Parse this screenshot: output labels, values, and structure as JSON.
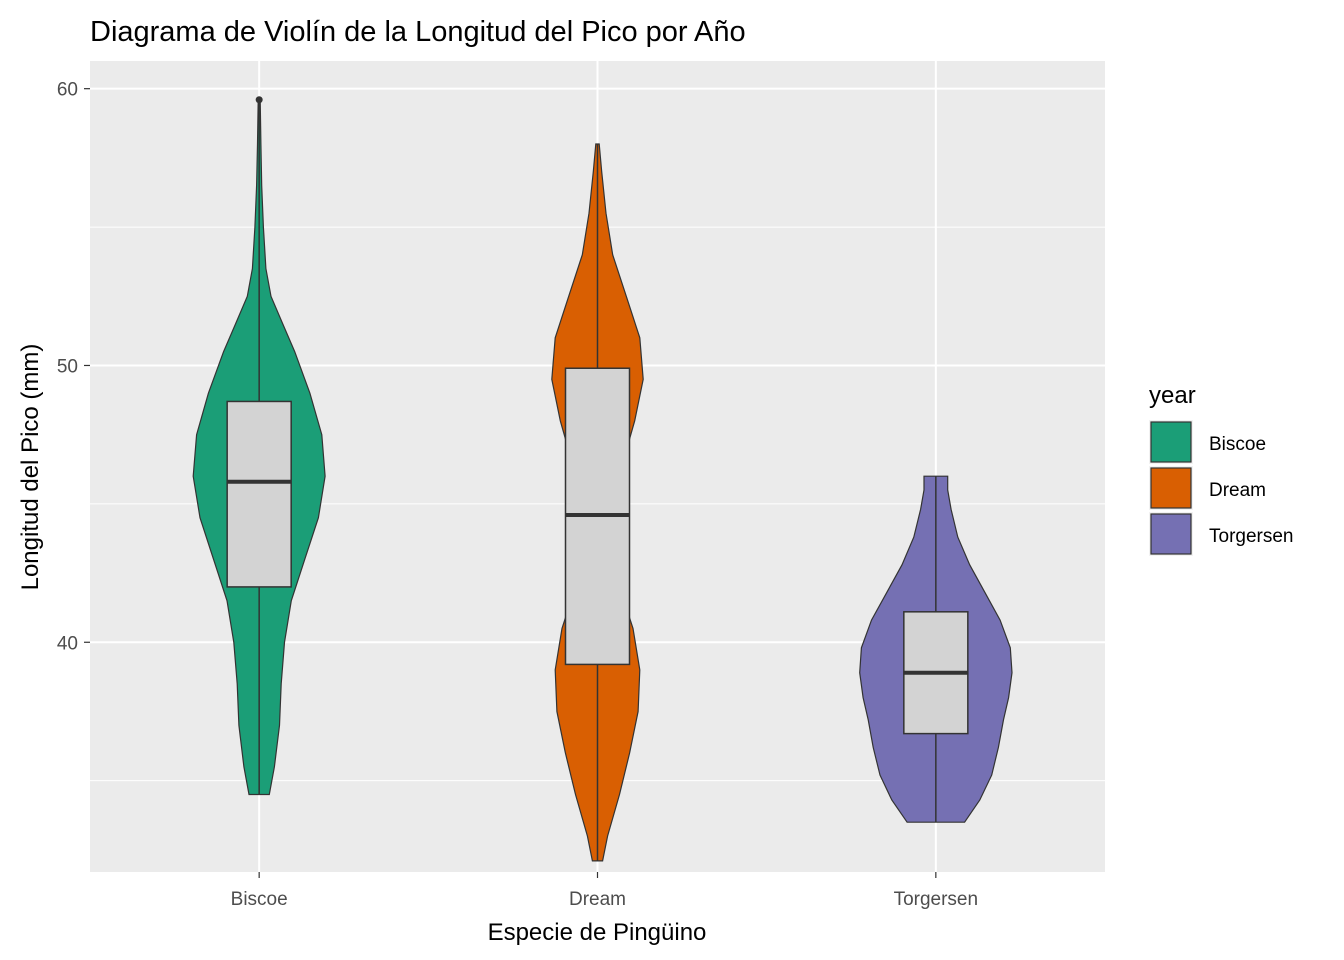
{
  "chart_data": {
    "type": "violin",
    "title": "Diagrama de Violín de la Longitud del Pico por Año",
    "xlabel": "Especie de Pingüino",
    "ylabel": "Longitud del Pico (mm)",
    "categories": [
      "Biscoe",
      "Dream",
      "Torgersen"
    ],
    "ylim": [
      31.7,
      61.0
    ],
    "yticks": [
      40,
      50,
      60
    ],
    "grid": true,
    "panel_background": "#ebebeb",
    "legend": {
      "title": "year",
      "placement": "right",
      "entries": [
        "Biscoe",
        "Dream",
        "Torgersen"
      ]
    },
    "series": [
      {
        "category": "Biscoe",
        "color": "#1b9e77",
        "box": {
          "lower_whisker": 34.5,
          "q1": 42.0,
          "median": 45.8,
          "q3": 48.7,
          "upper_whisker": 59.6
        },
        "outliers": [],
        "density_half_width": [
          [
            34.5,
            0.06
          ],
          [
            35.5,
            0.09
          ],
          [
            37.0,
            0.12
          ],
          [
            38.5,
            0.13
          ],
          [
            40.0,
            0.15
          ],
          [
            41.5,
            0.19
          ],
          [
            43.0,
            0.27
          ],
          [
            44.5,
            0.35
          ],
          [
            46.0,
            0.39
          ],
          [
            47.5,
            0.37
          ],
          [
            49.0,
            0.3
          ],
          [
            50.5,
            0.21
          ],
          [
            51.5,
            0.14
          ],
          [
            52.5,
            0.07
          ],
          [
            53.5,
            0.04
          ],
          [
            55.0,
            0.025
          ],
          [
            56.5,
            0.015
          ],
          [
            58.0,
            0.01
          ],
          [
            59.6,
            0.006
          ]
        ]
      },
      {
        "category": "Dream",
        "color": "#d95f02",
        "box": {
          "lower_whisker": 32.1,
          "q1": 39.2,
          "median": 44.6,
          "q3": 49.9,
          "upper_whisker": 58.0
        },
        "outliers": [],
        "density_half_width": [
          [
            32.1,
            0.03
          ],
          [
            33.0,
            0.06
          ],
          [
            34.5,
            0.13
          ],
          [
            36.0,
            0.19
          ],
          [
            37.5,
            0.24
          ],
          [
            39.0,
            0.25
          ],
          [
            40.5,
            0.21
          ],
          [
            42.0,
            0.13
          ],
          [
            43.5,
            0.09
          ],
          [
            45.0,
            0.11
          ],
          [
            46.5,
            0.15
          ],
          [
            48.0,
            0.22
          ],
          [
            49.5,
            0.27
          ],
          [
            51.0,
            0.25
          ],
          [
            52.5,
            0.17
          ],
          [
            54.0,
            0.09
          ],
          [
            55.5,
            0.05
          ],
          [
            57.0,
            0.025
          ],
          [
            58.0,
            0.01
          ]
        ]
      },
      {
        "category": "Torgersen",
        "color": "#7570b3",
        "box": {
          "lower_whisker": 33.5,
          "q1": 36.7,
          "median": 38.9,
          "q3": 41.1,
          "upper_whisker": 46.0
        },
        "outliers": [],
        "density_half_width": [
          [
            33.5,
            0.17
          ],
          [
            34.3,
            0.26
          ],
          [
            35.2,
            0.33
          ],
          [
            36.2,
            0.37
          ],
          [
            37.2,
            0.4
          ],
          [
            38.0,
            0.43
          ],
          [
            38.9,
            0.45
          ],
          [
            39.8,
            0.44
          ],
          [
            40.8,
            0.38
          ],
          [
            41.8,
            0.29
          ],
          [
            42.8,
            0.2
          ],
          [
            43.8,
            0.13
          ],
          [
            44.8,
            0.09
          ],
          [
            45.5,
            0.07
          ],
          [
            46.0,
            0.07
          ]
        ]
      }
    ]
  }
}
